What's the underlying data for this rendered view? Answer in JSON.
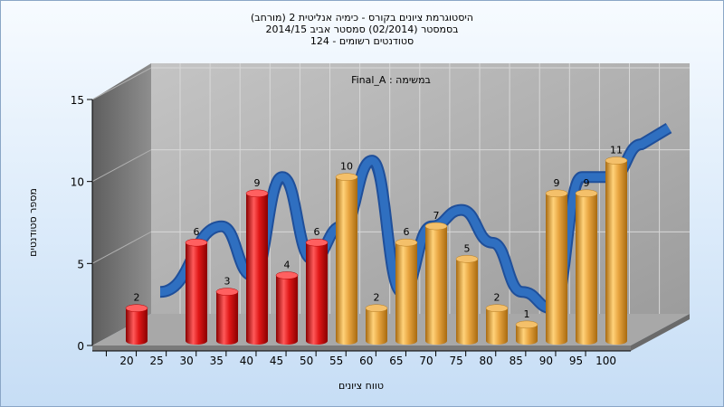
{
  "header": {
    "line1": "היסטוגרמת ציונים בקורס - כימיה אנליטית 2 (מורחב)",
    "line2": "בסמסטר  (02/2014)  סמסטר אביב 2014/15",
    "line3": "סטודנטים רשומים - 124"
  },
  "chart_data": {
    "type": "bar",
    "annotation": "במשימה : Final_A",
    "xlabel": "טווח ציונים",
    "ylabel": "מספר סטודנטים",
    "ylim": [
      0,
      15
    ],
    "yticks": [
      "0",
      "5",
      "10",
      "15"
    ],
    "xticks": [
      "20",
      "25",
      "30",
      "35",
      "40",
      "45",
      "50",
      "55",
      "60",
      "65",
      "70",
      "75",
      "80",
      "85",
      "90",
      "95",
      "100"
    ],
    "grid": true,
    "series": [
      {
        "type": "bar",
        "values": [
          2,
          6,
          3,
          9,
          4,
          6,
          10,
          2,
          6,
          7,
          5,
          2,
          1,
          9,
          9,
          11
        ],
        "labels": [
          "2",
          "6",
          "3",
          "9",
          "4",
          "6",
          "10",
          "2",
          "6",
          "7",
          "5",
          "2",
          "1",
          "9",
          "9",
          "11"
        ],
        "colors": [
          "#e01818",
          "#e01818",
          "#e01818",
          "#e01818",
          "#e01818",
          "#e01818",
          "#e8a540",
          "#e8a540",
          "#e8a540",
          "#e8a540",
          "#e8a540",
          "#e8a540",
          "#e8a540",
          "#e8a540",
          "#e8a540",
          "#e8a540"
        ]
      },
      {
        "type": "line",
        "color": "#2f6fc0",
        "values": [
          2,
          6,
          3,
          9,
          4,
          6,
          10,
          2,
          6,
          7,
          5,
          2,
          1,
          9,
          9,
          11
        ]
      }
    ]
  }
}
